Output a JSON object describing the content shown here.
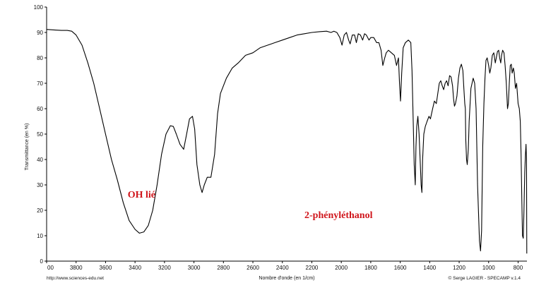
{
  "chart_data": {
    "type": "line",
    "title": "",
    "xlabel": "Nombre d'onde (en 1/cm)",
    "ylabel": "Transmittance (en %)",
    "x_reversed": true,
    "xlim": [
      4000,
      740
    ],
    "ylim": [
      0,
      100
    ],
    "grid": false,
    "x_ticks": [
      "00",
      "3800",
      "3600",
      "3400",
      "3200",
      "3000",
      "2800",
      "2600",
      "2400",
      "2200",
      "2000",
      "1800",
      "1600",
      "1400",
      "1200",
      "1000",
      "800"
    ],
    "y_ticks": [
      "0",
      "10",
      "20",
      "30",
      "40",
      "50",
      "60",
      "70",
      "80",
      "90",
      "100"
    ],
    "annotations": [
      {
        "text": "OH lié",
        "x": 3450,
        "y": 25
      },
      {
        "text": "2-phényléthanol",
        "x": 2250,
        "y": 17
      }
    ],
    "series": [
      {
        "color": "#000000",
        "points": [
          [
            4000,
            91.2
          ],
          [
            3950,
            91
          ],
          [
            3900,
            90.8
          ],
          [
            3860,
            90.8
          ],
          [
            3830,
            90.5
          ],
          [
            3800,
            89
          ],
          [
            3760,
            85
          ],
          [
            3720,
            78
          ],
          [
            3680,
            70
          ],
          [
            3640,
            60
          ],
          [
            3600,
            50
          ],
          [
            3560,
            40
          ],
          [
            3520,
            32
          ],
          [
            3480,
            23
          ],
          [
            3440,
            16
          ],
          [
            3400,
            12.5
          ],
          [
            3370,
            11
          ],
          [
            3340,
            11.5
          ],
          [
            3310,
            14
          ],
          [
            3280,
            20
          ],
          [
            3250,
            30
          ],
          [
            3220,
            42
          ],
          [
            3190,
            50
          ],
          [
            3160,
            53.3
          ],
          [
            3140,
            53
          ],
          [
            3120,
            50
          ],
          [
            3095,
            46
          ],
          [
            3070,
            44
          ],
          [
            3050,
            50
          ],
          [
            3030,
            56
          ],
          [
            3010,
            57
          ],
          [
            2995,
            52
          ],
          [
            2980,
            38
          ],
          [
            2960,
            30
          ],
          [
            2945,
            27
          ],
          [
            2930,
            30
          ],
          [
            2910,
            33
          ],
          [
            2885,
            33
          ],
          [
            2860,
            42
          ],
          [
            2840,
            58
          ],
          [
            2820,
            66
          ],
          [
            2780,
            72
          ],
          [
            2740,
            76
          ],
          [
            2700,
            78
          ],
          [
            2650,
            81
          ],
          [
            2600,
            82
          ],
          [
            2550,
            84
          ],
          [
            2500,
            85
          ],
          [
            2450,
            86
          ],
          [
            2400,
            87
          ],
          [
            2350,
            88
          ],
          [
            2300,
            89
          ],
          [
            2250,
            89.5
          ],
          [
            2200,
            90
          ],
          [
            2150,
            90.3
          ],
          [
            2100,
            90.5
          ],
          [
            2070,
            90
          ],
          [
            2050,
            90.5
          ],
          [
            2030,
            90
          ],
          [
            2010,
            88
          ],
          [
            1995,
            85
          ],
          [
            1980,
            89
          ],
          [
            1965,
            90
          ],
          [
            1950,
            87
          ],
          [
            1940,
            85.5
          ],
          [
            1925,
            89
          ],
          [
            1910,
            89
          ],
          [
            1898,
            86
          ],
          [
            1885,
            89.5
          ],
          [
            1870,
            89
          ],
          [
            1855,
            87
          ],
          [
            1842,
            89.5
          ],
          [
            1830,
            89
          ],
          [
            1812,
            87
          ],
          [
            1800,
            88
          ],
          [
            1780,
            88
          ],
          [
            1760,
            86
          ],
          [
            1745,
            86
          ],
          [
            1730,
            83
          ],
          [
            1718,
            77
          ],
          [
            1705,
            80
          ],
          [
            1695,
            82
          ],
          [
            1680,
            83
          ],
          [
            1660,
            82
          ],
          [
            1640,
            81
          ],
          [
            1625,
            77
          ],
          [
            1612,
            80
          ],
          [
            1605,
            70
          ],
          [
            1598,
            63
          ],
          [
            1590,
            74
          ],
          [
            1580,
            84
          ],
          [
            1565,
            86
          ],
          [
            1545,
            87
          ],
          [
            1528,
            86
          ],
          [
            1520,
            75
          ],
          [
            1512,
            55
          ],
          [
            1505,
            38
          ],
          [
            1498,
            30
          ],
          [
            1493,
            45
          ],
          [
            1488,
            53
          ],
          [
            1480,
            57
          ],
          [
            1472,
            50
          ],
          [
            1465,
            40
          ],
          [
            1458,
            30
          ],
          [
            1453,
            27
          ],
          [
            1448,
            40
          ],
          [
            1440,
            50
          ],
          [
            1430,
            53
          ],
          [
            1418,
            55
          ],
          [
            1405,
            57
          ],
          [
            1395,
            56
          ],
          [
            1380,
            60
          ],
          [
            1368,
            63
          ],
          [
            1355,
            62
          ],
          [
            1345,
            66
          ],
          [
            1335,
            70
          ],
          [
            1325,
            71
          ],
          [
            1315,
            69
          ],
          [
            1305,
            67.5
          ],
          [
            1295,
            70
          ],
          [
            1285,
            71
          ],
          [
            1275,
            69
          ],
          [
            1265,
            73
          ],
          [
            1255,
            72.5
          ],
          [
            1245,
            69
          ],
          [
            1238,
            64
          ],
          [
            1232,
            61
          ],
          [
            1225,
            62
          ],
          [
            1215,
            65
          ],
          [
            1205,
            72
          ],
          [
            1195,
            76
          ],
          [
            1185,
            77.5
          ],
          [
            1175,
            75
          ],
          [
            1168,
            68
          ],
          [
            1162,
            62
          ],
          [
            1158,
            60
          ],
          [
            1155,
            48
          ],
          [
            1150,
            40
          ],
          [
            1145,
            38
          ],
          [
            1138,
            44
          ],
          [
            1132,
            55
          ],
          [
            1120,
            68
          ],
          [
            1105,
            72
          ],
          [
            1095,
            70
          ],
          [
            1085,
            60
          ],
          [
            1075,
            30
          ],
          [
            1062,
            8
          ],
          [
            1055,
            4
          ],
          [
            1048,
            12
          ],
          [
            1040,
            45
          ],
          [
            1032,
            62
          ],
          [
            1025,
            72
          ],
          [
            1018,
            79
          ],
          [
            1010,
            80
          ],
          [
            1000,
            77
          ],
          [
            992,
            74
          ],
          [
            985,
            76
          ],
          [
            975,
            81
          ],
          [
            965,
            82
          ],
          [
            955,
            78
          ],
          [
            948,
            80
          ],
          [
            940,
            82.5
          ],
          [
            932,
            83
          ],
          [
            925,
            80
          ],
          [
            918,
            78
          ],
          [
            912,
            81
          ],
          [
            905,
            83
          ],
          [
            896,
            82
          ],
          [
            888,
            77
          ],
          [
            880,
            70
          ],
          [
            872,
            60
          ],
          [
            866,
            62
          ],
          [
            860,
            70
          ],
          [
            853,
            77
          ],
          [
            846,
            77.5
          ],
          [
            840,
            74
          ],
          [
            832,
            76
          ],
          [
            826,
            74
          ],
          [
            818,
            68
          ],
          [
            810,
            70
          ],
          [
            800,
            62
          ],
          [
            792,
            60
          ],
          [
            785,
            55
          ],
          [
            780,
            42
          ],
          [
            775,
            25
          ],
          [
            770,
            10
          ],
          [
            765,
            9
          ],
          [
            760,
            20
          ],
          [
            755,
            35
          ],
          [
            750,
            42
          ],
          [
            746,
            46
          ],
          [
            743,
            40
          ],
          [
            741,
            3
          ]
        ]
      }
    ]
  },
  "footer": {
    "left": "http://www.sciences-edu.net",
    "right": "© Serge LAGIER - SPECAMP v.1.4"
  }
}
